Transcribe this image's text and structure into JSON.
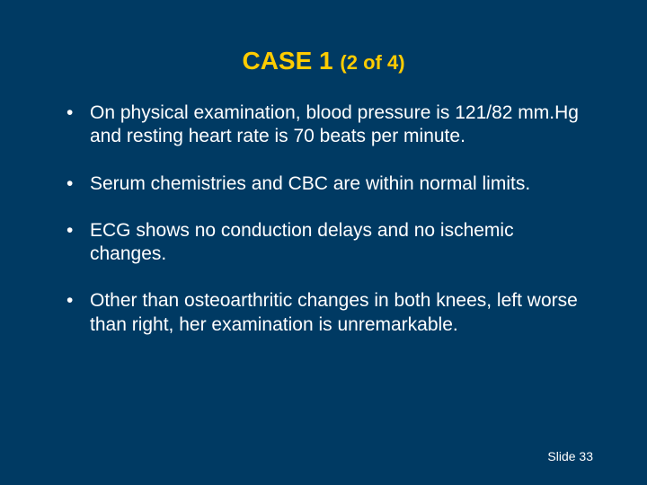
{
  "background_color": "#003a63",
  "title_color": "#ffcc00",
  "text_color": "#ffffff",
  "title_main": "CASE 1 ",
  "title_sub": "(2 of 4)",
  "title_main_fontsize": 28,
  "title_sub_fontsize": 22,
  "bullets": [
    "On physical examination, blood pressure is 121/82 mm.Hg and resting heart rate is 70 beats per minute.",
    "Serum chemistries and CBC are within normal limits.",
    "ECG shows no conduction delays and no ischemic changes.",
    "Other than osteoarthritic changes in both knees, left worse than right, her examination is unremarkable."
  ],
  "bullet_fontsize": 21,
  "footer_text": "Slide 33",
  "footer_fontsize": 14,
  "slide_width": 720,
  "slide_height": 540
}
